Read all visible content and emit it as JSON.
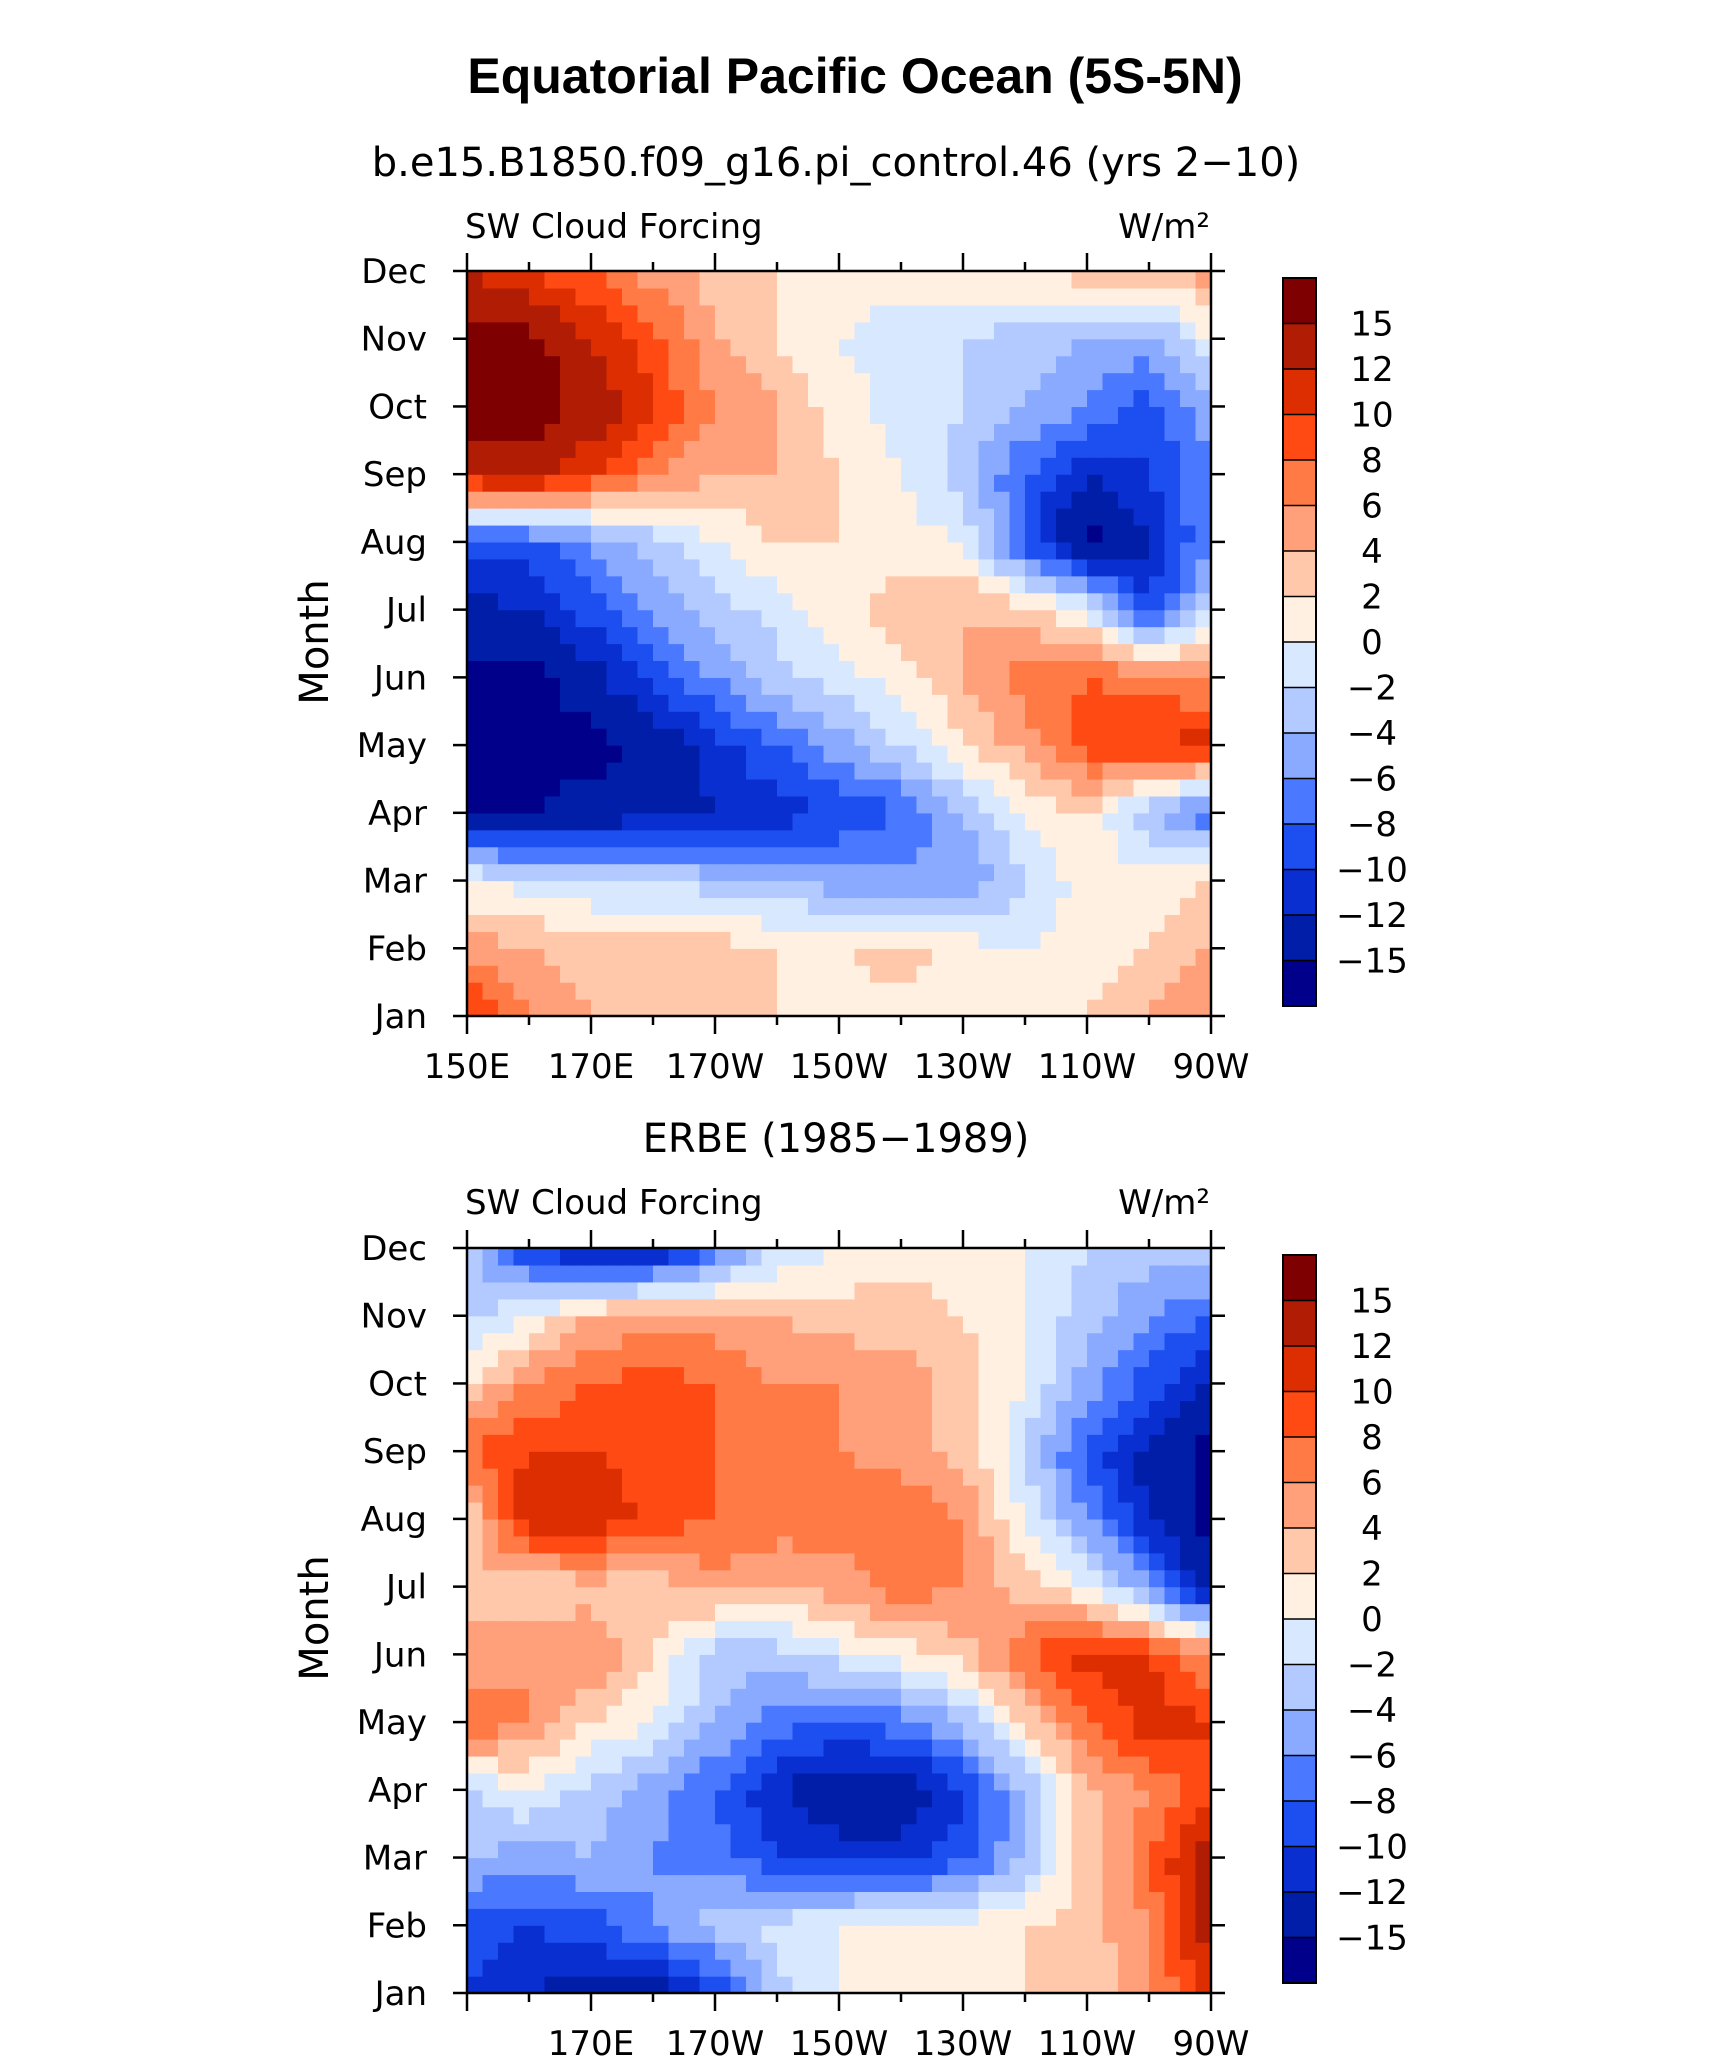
{
  "title": "Equatorial Pacific Ocean (5S-5N)",
  "colorbar": {
    "levels": [
      "15",
      "12",
      "10",
      "8",
      "6",
      "4",
      "2",
      "0",
      "−2",
      "−4",
      "−6",
      "−8",
      "−10",
      "−12",
      "−15"
    ],
    "colors": [
      "#7f0000",
      "#b01c04",
      "#dc2e00",
      "#ff4a14",
      "#ff7a44",
      "#ffa07a",
      "#ffc8aa",
      "#fff0e2",
      "#d8e8ff",
      "#b2caff",
      "#8aaaff",
      "#4a78ff",
      "#1c4ef0",
      "#0a2fd0",
      "#001ea8",
      "#00008a"
    ]
  },
  "chart_data": [
    {
      "type": "heatmap",
      "subtitle": "b.e15.B1850.f09_g16.pi_control.46 (yrs 2−10)",
      "left_label": "SW Cloud Forcing",
      "right_label": "W/m²",
      "ylabel": "Month",
      "x_tick_labels": [
        "150E",
        "170E",
        "170W",
        "150W",
        "130W",
        "110W",
        "90W"
      ],
      "y_tick_labels": [
        "Jan",
        "Feb",
        "Mar",
        "Apr",
        "May",
        "Jun",
        "Jul",
        "Aug",
        "Sep",
        "Oct",
        "Nov",
        "Dec"
      ],
      "xlim": [
        150,
        270
      ],
      "ylim": [
        1,
        12
      ],
      "x": [
        150,
        160,
        170,
        180,
        190,
        200,
        210,
        220,
        230,
        240,
        250,
        260,
        270
      ],
      "y": [
        "Jan",
        "Feb",
        "Mar",
        "Apr",
        "May",
        "Jun",
        "Jul",
        "Aug",
        "Sep",
        "Oct",
        "Nov",
        "Dec"
      ],
      "z": [
        [
          11,
          6,
          4,
          3,
          3,
          2,
          1,
          1,
          2,
          1,
          2,
          4,
          6
        ],
        [
          5,
          4,
          3,
          3,
          3,
          2,
          2,
          3,
          1,
          0,
          1,
          2,
          4
        ],
        [
          0,
          -1,
          -2,
          -2,
          -3,
          -4,
          -5,
          -5,
          -6,
          -2,
          1,
          1,
          2
        ],
        [
          -15,
          -15,
          -14,
          -13,
          -12,
          -11,
          -10,
          -8,
          -4,
          0,
          2,
          -4,
          -8
        ],
        [
          -17,
          -16,
          -16,
          -14,
          -11,
          -8,
          -5,
          -2,
          2,
          5,
          9,
          10,
          11
        ],
        [
          -16,
          -16,
          -13,
          -9,
          -6,
          -3,
          -1,
          1,
          4,
          7,
          8,
          7,
          6
        ],
        [
          -13,
          -12,
          -9,
          -6,
          -3,
          -1,
          1,
          3,
          4,
          3,
          0,
          -10,
          -2
        ],
        [
          -9,
          -9,
          -6,
          -3,
          0,
          2,
          2,
          1,
          0,
          -9,
          -16,
          -12,
          -6
        ],
        [
          12,
          14,
          10,
          6,
          4,
          4,
          2,
          0,
          -3,
          -8,
          -12,
          -10,
          -6
        ],
        [
          17,
          17,
          14,
          10,
          6,
          4,
          1,
          -1,
          -2,
          -4,
          -6,
          -9,
          -5
        ],
        [
          17,
          16,
          12,
          9,
          4,
          2,
          0,
          -1,
          -2,
          -3,
          -4,
          -5,
          0
        ],
        [
          12,
          10,
          8,
          5,
          3,
          2,
          1,
          1,
          2,
          2,
          3,
          3,
          5
        ]
      ]
    },
    {
      "type": "heatmap",
      "subtitle": "ERBE (1985−1989)",
      "left_label": "SW Cloud Forcing",
      "right_label": "W/m²",
      "ylabel": "Month",
      "x_tick_labels": [
        "170E",
        "170W",
        "150W",
        "130W",
        "110W",
        "90W"
      ],
      "y_tick_labels": [
        "Jan",
        "Feb",
        "Mar",
        "Apr",
        "May",
        "Jun",
        "Jul",
        "Aug",
        "Sep",
        "Oct",
        "Nov",
        "Dec"
      ],
      "xlim": [
        150,
        270
      ],
      "ylim": [
        1,
        12
      ],
      "x": [
        150,
        160,
        170,
        180,
        190,
        200,
        210,
        220,
        230,
        240,
        250,
        260,
        270
      ],
      "y": [
        "Jan",
        "Feb",
        "Mar",
        "Apr",
        "May",
        "Jun",
        "Jul",
        "Aug",
        "Sep",
        "Oct",
        "Nov",
        "Dec"
      ],
      "z": [
        [
          -10,
          -12,
          -13,
          -14,
          -10,
          -3,
          0,
          1,
          1,
          2,
          2,
          5,
          12
        ],
        [
          -9,
          -10,
          -9,
          -6,
          -3,
          -1,
          0,
          1,
          1,
          2,
          3,
          6,
          13
        ],
        [
          -4,
          -5,
          -4,
          -6,
          -7,
          -10,
          -11,
          -11,
          -9,
          -4,
          3,
          8,
          14
        ],
        [
          -2,
          0,
          -3,
          -5,
          -8,
          -12,
          -14,
          -14,
          -10,
          -4,
          3,
          6,
          10
        ],
        [
          8,
          6,
          2,
          0,
          -4,
          -7,
          -8,
          -7,
          -4,
          2,
          8,
          11,
          10
        ],
        [
          4,
          6,
          6,
          2,
          -3,
          -3,
          -1,
          1,
          3,
          8,
          11,
          10,
          6
        ],
        [
          4,
          2,
          3,
          3,
          5,
          4,
          5,
          7,
          6,
          3,
          0,
          -6,
          -14
        ],
        [
          2,
          12,
          12,
          9,
          8,
          7,
          7,
          8,
          6,
          0,
          -6,
          -12,
          -16
        ],
        [
          8,
          10,
          10,
          9,
          8,
          7,
          6,
          5,
          3,
          -2,
          -9,
          -13,
          -16
        ],
        [
          2,
          6,
          8,
          9,
          8,
          6,
          6,
          5,
          3,
          0,
          -5,
          -9,
          -12
        ],
        [
          -3,
          0,
          4,
          5,
          5,
          4,
          3,
          3,
          2,
          0,
          -3,
          -6,
          -8
        ],
        [
          -3,
          -10,
          -14,
          -13,
          -8,
          -2,
          0,
          1,
          1,
          0,
          -2,
          -3,
          -2
        ]
      ]
    }
  ]
}
